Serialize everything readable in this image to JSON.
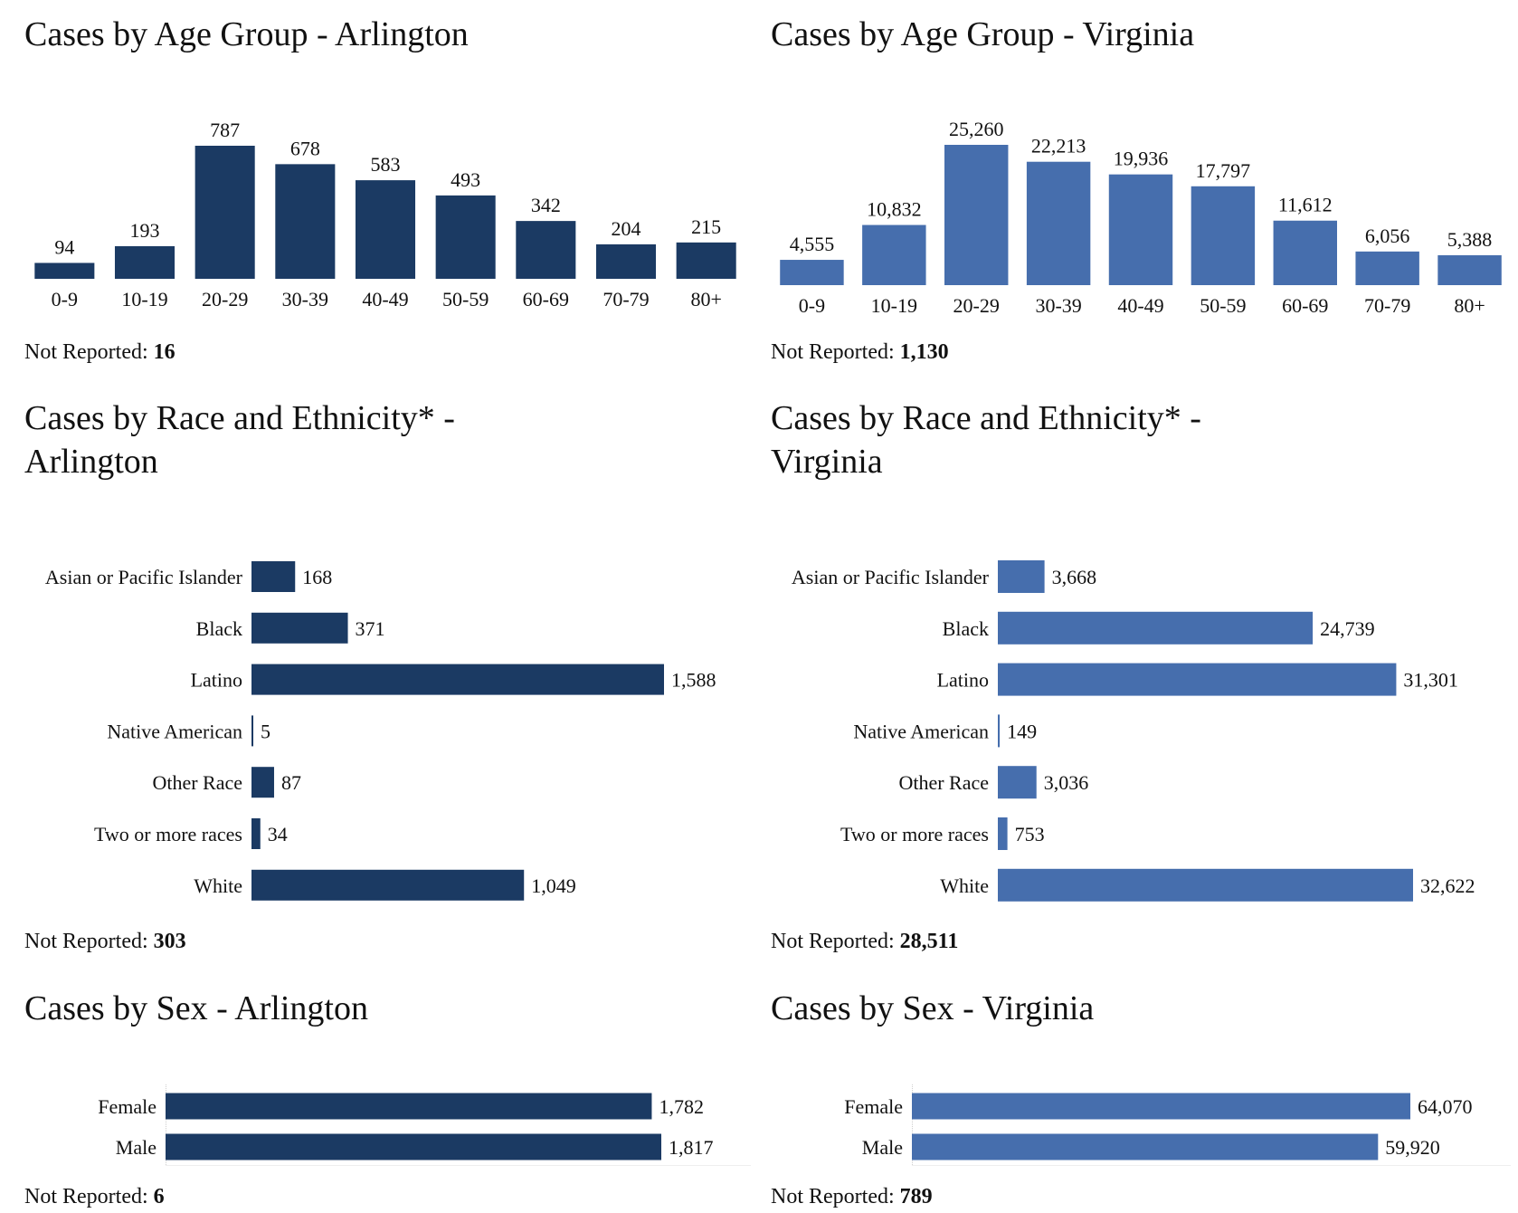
{
  "colors": {
    "arlington": "#1b3a63",
    "virginia": "#466ead"
  },
  "notReportedLabel": "Not Reported:",
  "chart_data": [
    {
      "id": "age-arlington",
      "type": "bar",
      "title": "Cases by Age Group - Arlington",
      "categories": [
        "0-9",
        "10-19",
        "20-29",
        "30-39",
        "40-49",
        "50-59",
        "60-69",
        "70-79",
        "80+"
      ],
      "values": [
        94,
        193,
        787,
        678,
        583,
        493,
        342,
        204,
        215
      ],
      "value_labels": [
        "94",
        "193",
        "787",
        "678",
        "583",
        "493",
        "342",
        "204",
        "215"
      ],
      "not_reported": "16"
    },
    {
      "id": "age-virginia",
      "type": "bar",
      "title": "Cases by Age Group - Virginia",
      "categories": [
        "0-9",
        "10-19",
        "20-29",
        "30-39",
        "40-49",
        "50-59",
        "60-69",
        "70-79",
        "80+"
      ],
      "values": [
        4555,
        10832,
        25260,
        22213,
        19936,
        17797,
        11612,
        6056,
        5388
      ],
      "value_labels": [
        "4,555",
        "10,832",
        "25,260",
        "22,213",
        "19,936",
        "17,797",
        "11,612",
        "6,056",
        "5,388"
      ],
      "not_reported": "1,130"
    },
    {
      "id": "race-arlington",
      "type": "bar",
      "orientation": "horizontal",
      "title_lines": [
        "Cases by Race and Ethnicity* -",
        "Arlington"
      ],
      "categories": [
        "Asian or Pacific Islander",
        "Black",
        "Latino",
        "Native American",
        "Other Race",
        "Two or more races",
        "White"
      ],
      "values": [
        168,
        371,
        1588,
        5,
        87,
        34,
        1049
      ],
      "value_labels": [
        "168",
        "371",
        "1,588",
        "5",
        "87",
        "34",
        "1,049"
      ],
      "not_reported": "303"
    },
    {
      "id": "race-virginia",
      "type": "bar",
      "orientation": "horizontal",
      "title_lines": [
        "Cases by Race and Ethnicity* -",
        "Virginia"
      ],
      "categories": [
        "Asian or Pacific Islander",
        "Black",
        "Latino",
        "Native American",
        "Other Race",
        "Two or more races",
        "White"
      ],
      "values": [
        3668,
        24739,
        31301,
        149,
        3036,
        753,
        32622
      ],
      "value_labels": [
        "3,668",
        "24,739",
        "31,301",
        "149",
        "3,036",
        "753",
        "32,622"
      ],
      "not_reported": "28,511"
    },
    {
      "id": "sex-arlington",
      "type": "bar",
      "orientation": "horizontal",
      "title": "Cases by Sex - Arlington",
      "categories": [
        "Female",
        "Male"
      ],
      "values": [
        1782,
        1817
      ],
      "value_labels": [
        "1,782",
        "1,817"
      ],
      "not_reported": "6"
    },
    {
      "id": "sex-virginia",
      "type": "bar",
      "orientation": "horizontal",
      "title": "Cases by Sex - Virginia",
      "categories": [
        "Female",
        "Male"
      ],
      "values": [
        64070,
        59920
      ],
      "value_labels": [
        "64,070",
        "59,920"
      ],
      "not_reported": "789"
    }
  ]
}
